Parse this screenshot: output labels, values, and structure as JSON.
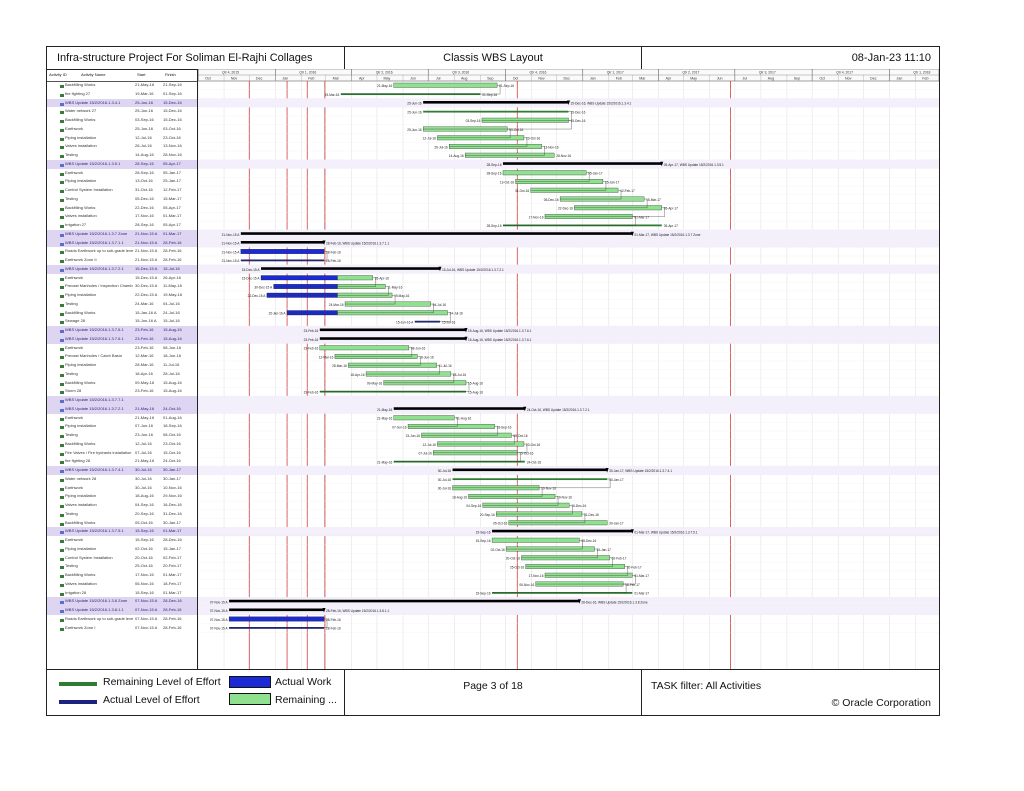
{
  "header": {
    "project": "Infra-structure Project For Soliman El-Rajhi Collages",
    "layout": "Classis WBS Layout",
    "datetime": "08-Jan-23 11:10"
  },
  "columns": [
    "Activity ID",
    "Activity Name",
    "Start",
    "Finish"
  ],
  "timeline_quarters": [
    "Qtr 4, 2015",
    "Qtr 1, 2016",
    "Qtr 2, 2016",
    "Qtr 3, 2016",
    "Qtr 4, 2016",
    "Qtr 1, 2017",
    "Qtr 2, 2017",
    "Qtr 3, 2017",
    "Qtr 4, 2017",
    "Qtr 1, 2018"
  ],
  "timeline_months": [
    "Oct",
    "Nov",
    "Dec",
    "Jan",
    "Feb",
    "Mar",
    "Apr",
    "May",
    "Jun",
    "Jul",
    "Aug",
    "Sep",
    "Oct",
    "Nov",
    "Dec",
    "Jan",
    "Feb",
    "Mar",
    "Apr",
    "May",
    "Jun",
    "Jul",
    "Aug",
    "Sep",
    "Oct",
    "Nov",
    "Dec",
    "Jan",
    "Feb"
  ],
  "activities": [
    {
      "wbs": false,
      "name": "Backfilling Works",
      "start": "21-May-16",
      "finish": "21-Sep-16"
    },
    {
      "wbs": false,
      "name": "fire fighting 27",
      "start": "19-Mar-16",
      "finish": "01-Sep-16"
    },
    {
      "wbs": true,
      "name": "WBS Update 15/2/2016.1.3.4.1",
      "start": "25-Jun-16",
      "finish": "15-Dec-16"
    },
    {
      "wbs": false,
      "name": "Water network 27",
      "start": "25-Jun-16",
      "finish": "15-Dec-16"
    },
    {
      "wbs": false,
      "name": "Backfilling Works",
      "start": "03-Sep-16",
      "finish": "15-Dec-16"
    },
    {
      "wbs": false,
      "name": "Earthwork",
      "start": "25-Jun-16",
      "finish": "03-Oct-16"
    },
    {
      "wbs": false,
      "name": "Piping installation",
      "start": "12-Jul-16",
      "finish": "23-Oct-16"
    },
    {
      "wbs": false,
      "name": "Valves installation",
      "start": "26-Jul-16",
      "finish": "13-Nov-16"
    },
    {
      "wbs": false,
      "name": "Testing",
      "start": "14-Aug-16",
      "finish": "28-Nov-16"
    },
    {
      "wbs": true,
      "name": "WBS Update 15/2/2016.1.3.5.1",
      "start": "28-Sep-16",
      "finish": "05-Apr-17"
    },
    {
      "wbs": false,
      "name": "Earthwork",
      "start": "28-Sep-16",
      "finish": "05-Jan-17"
    },
    {
      "wbs": false,
      "name": "Piping installation",
      "start": "13-Oct-16",
      "finish": "25-Jan-17"
    },
    {
      "wbs": false,
      "name": "Control System Installation",
      "start": "31-Oct-16",
      "finish": "12-Feb-17"
    },
    {
      "wbs": false,
      "name": "Testing",
      "start": "05-Dec-16",
      "finish": "15-Mar-17"
    },
    {
      "wbs": false,
      "name": "Backfilling Works",
      "start": "22-Dec-16",
      "finish": "05-Apr-17"
    },
    {
      "wbs": false,
      "name": "Valves installation",
      "start": "17-Nov-16",
      "finish": "01-Mar-17"
    },
    {
      "wbs": false,
      "name": "Irrigation 27",
      "start": "28-Sep-16",
      "finish": "05-Apr-17"
    },
    {
      "wbs": true,
      "name": "WBS Update 15/2/2016.1.3.7 Zone",
      "start": "21-Nov-15 A",
      "finish": "01-Mar-17"
    },
    {
      "wbs": true,
      "name": "WBS Update 15/2/2016.1.3.7.1.1",
      "start": "21-Nov-15 A",
      "finish": "28-Feb-16"
    },
    {
      "wbs": false,
      "name": "Roads Earthwork up to sub-grade level",
      "start": "21-Nov-15 A",
      "finish": "28-Feb-16"
    },
    {
      "wbs": false,
      "name": "Earthwork Zone II",
      "start": "21-Nov-15 A",
      "finish": "28-Feb-16"
    },
    {
      "wbs": true,
      "name": "WBS Update 15/2/2016.1.3.7.2.1",
      "start": "15-Dec-15 A",
      "finish": "15-Jul-16"
    },
    {
      "wbs": false,
      "name": "Earthwork",
      "start": "15-Dec-15 A",
      "finish": "26-Apr-16"
    },
    {
      "wbs": false,
      "name": "Precast Manholes / Inspection Chamber",
      "start": "30-Dec-15 A",
      "finish": "11-May-16"
    },
    {
      "wbs": false,
      "name": "Piping installation",
      "start": "22-Dec-15 A",
      "finish": "19-May-16"
    },
    {
      "wbs": false,
      "name": "Testing",
      "start": "24-Mar-16",
      "finish": "04-Jul-16"
    },
    {
      "wbs": false,
      "name": "Backfilling Works",
      "start": "15-Jan-16 A",
      "finish": "24-Jul-16"
    },
    {
      "wbs": false,
      "name": "Sewage 28",
      "start": "15-Jun-16 A",
      "finish": "15-Jul-16"
    },
    {
      "wbs": true,
      "name": "WBS Update 15/2/2016.1.3.7.6.1",
      "start": "23-Feb-16",
      "finish": "15-Aug-16"
    },
    {
      "wbs": true,
      "name": "WBS Update 15/2/2016.1.3.7.6.1",
      "start": "23-Feb-16",
      "finish": "15-Aug-16"
    },
    {
      "wbs": false,
      "name": "Earthwork",
      "start": "23-Feb-16",
      "finish": "08-Jun-16"
    },
    {
      "wbs": false,
      "name": "Precast Manholes / Catch Basin",
      "start": "12-Mar-16",
      "finish": "18-Jun-16"
    },
    {
      "wbs": false,
      "name": "Piping installation",
      "start": "28-Mar-16",
      "finish": "11-Jul-16"
    },
    {
      "wbs": false,
      "name": "Testing",
      "start": "18-Apr-16",
      "finish": "28-Jul-16"
    },
    {
      "wbs": false,
      "name": "Backfilling Works",
      "start": "09-May-16",
      "finish": "15-Aug-16"
    },
    {
      "wbs": false,
      "name": "Storm 28",
      "start": "23-Feb-16",
      "finish": "15-Aug-16"
    },
    {
      "wbs": true,
      "name": "WBS Update 15/2/2016.1.3.7.7.1",
      "start": "",
      "finish": ""
    },
    {
      "wbs": true,
      "name": "WBS Update 15/2/2016.1.3.7.2.1",
      "start": "21-May-16",
      "finish": "24-Oct-16"
    },
    {
      "wbs": false,
      "name": "Earthwork",
      "start": "21-May-16",
      "finish": "01-Aug-16"
    },
    {
      "wbs": false,
      "name": "Piping installation",
      "start": "07-Jun-16",
      "finish": "18-Sep-16"
    },
    {
      "wbs": false,
      "name": "Testing",
      "start": "23-Jun-16",
      "finish": "08-Oct-16"
    },
    {
      "wbs": false,
      "name": "Backfilling Works",
      "start": "12-Jul-16",
      "finish": "23-Oct-16"
    },
    {
      "wbs": false,
      "name": "Fire Valves / Fire hydrants installation",
      "start": "07-Jul-16",
      "finish": "15-Oct-16"
    },
    {
      "wbs": false,
      "name": "fire fighting 28",
      "start": "21-May-16",
      "finish": "24-Oct-16"
    },
    {
      "wbs": true,
      "name": "WBS Update 15/2/2016.1.3.7.4.1",
      "start": "30-Jul-16",
      "finish": "30-Jan-17"
    },
    {
      "wbs": false,
      "name": "Water network 28",
      "start": "30-Jul-16",
      "finish": "30-Jan-17"
    },
    {
      "wbs": false,
      "name": "Earthwork",
      "start": "30-Jul-16",
      "finish": "10-Nov-16"
    },
    {
      "wbs": false,
      "name": "Piping installation",
      "start": "18-Aug-16",
      "finish": "29-Nov-16"
    },
    {
      "wbs": false,
      "name": "Valves installation",
      "start": "04-Sep-16",
      "finish": "16-Dec-16"
    },
    {
      "wbs": false,
      "name": "Testing",
      "start": "20-Sep-16",
      "finish": "31-Dec-16"
    },
    {
      "wbs": false,
      "name": "Backfilling Works",
      "start": "05-Oct-16",
      "finish": "30-Jan-17"
    },
    {
      "wbs": true,
      "name": "WBS Update 15/2/2016.1.3.7.5.1",
      "start": "15-Sep-16",
      "finish": "01-Mar-17"
    },
    {
      "wbs": false,
      "name": "Earthwork",
      "start": "15-Sep-16",
      "finish": "28-Dec-16"
    },
    {
      "wbs": false,
      "name": "Piping installation",
      "start": "02-Oct-16",
      "finish": "15-Jan-17"
    },
    {
      "wbs": false,
      "name": "Control System Installation",
      "start": "20-Oct-16",
      "finish": "02-Feb-17"
    },
    {
      "wbs": false,
      "name": "Testing",
      "start": "25-Oct-16",
      "finish": "20-Feb-17"
    },
    {
      "wbs": false,
      "name": "Backfilling Works",
      "start": "17-Nov-16",
      "finish": "01-Mar-17"
    },
    {
      "wbs": false,
      "name": "Valves installation",
      "start": "06-Nov-16",
      "finish": "18-Feb-17"
    },
    {
      "wbs": false,
      "name": "Irrigation 28",
      "start": "15-Sep-16",
      "finish": "01-Mar-17"
    },
    {
      "wbs": true,
      "name": "WBS Update 15/2/2016.1.3.8 Zone",
      "start": "07-Nov-15 A",
      "finish": "28-Dec-16"
    },
    {
      "wbs": true,
      "name": "WBS Update 15/2/2016.1.3.8.1.1",
      "start": "07-Nov-15 A",
      "finish": "28-Feb-16"
    },
    {
      "wbs": false,
      "name": "Roads Earthwork up to sub-grade level",
      "start": "07-Nov-15 A",
      "finish": "28-Feb-16"
    },
    {
      "wbs": false,
      "name": "Earthwork Zone I",
      "start": "07-Nov-15 A",
      "finish": "28-Feb-16"
    }
  ],
  "footer": {
    "legend": {
      "remaining_loe": "Remaining Level of Effort",
      "actual_loe": "Actual Level of Effort",
      "actual_work": "Actual Work",
      "remaining_work": "Remaining ..."
    },
    "page": "Page 3 of 18",
    "filter": "TASK filter: All Activities",
    "copyright": "© Oracle Corporation"
  },
  "colors": {
    "remaining_loe": "#2e7d32",
    "actual_loe": "#1a237e",
    "actual_work": "#1a2bd6",
    "remaining_work": "#8fe08f",
    "wbs_band": "#ded5f2",
    "data_date": "#cc2222"
  }
}
